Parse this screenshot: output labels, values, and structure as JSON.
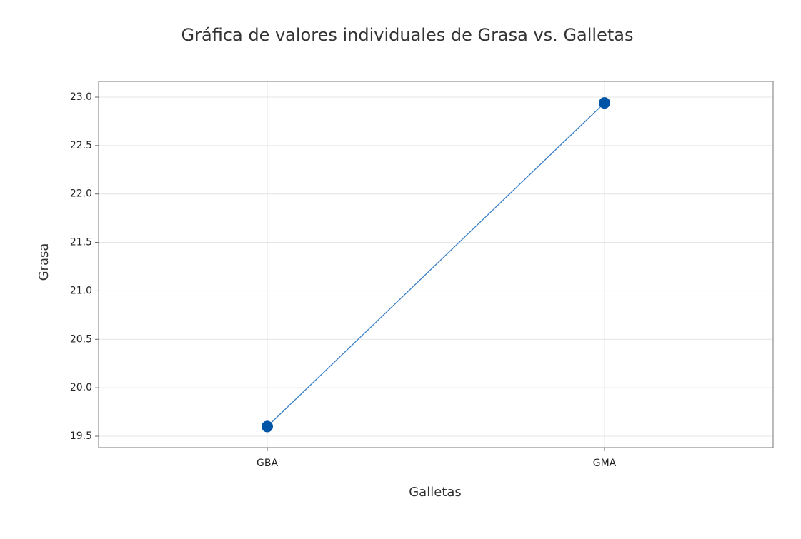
{
  "chart_data": {
    "type": "line",
    "title": "Gráfica de valores individuales de Grasa vs. Galletas",
    "x_label": "Galletas",
    "y_label": "Grasa",
    "categories": [
      "GBA",
      "GMA"
    ],
    "values": [
      19.6,
      22.94
    ],
    "color": "#0054a6",
    "ylim": [
      19.382,
      23.162
    ],
    "yticks": [
      {
        "value": 19.5,
        "label": "19.5"
      },
      {
        "value": 20,
        "label": "20.0"
      },
      20.5,
      {
        "value": 21,
        "label": "21.0"
      },
      21.5,
      {
        "value": 22,
        "label": "22.0"
      },
      22.5,
      {
        "value": 23,
        "label": "23.0"
      }
    ],
    "grid": true
  }
}
